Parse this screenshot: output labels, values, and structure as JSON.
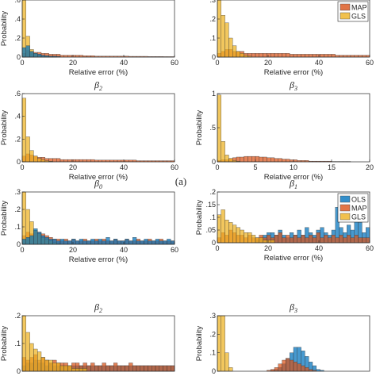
{
  "figure": {
    "label_a": "(a)",
    "colors": {
      "OLS": "#0072BD",
      "MAP": "#D95319",
      "GLS": "#EDB120"
    }
  },
  "chart_data": [
    {
      "type": "bar",
      "id": "a1",
      "title": "",
      "xlabel": "Relative error (%)",
      "ylabel": "Probability",
      "xlim": [
        0,
        60
      ],
      "ylim": [
        0,
        0.6
      ],
      "xticks": [
        0,
        20,
        40,
        60
      ],
      "yticks": [
        0,
        0.2,
        0.4,
        0.6
      ],
      "binwidth": 1.5,
      "series": [
        {
          "name": "MAP",
          "values": [
            0.04,
            0.07,
            0.06,
            0.05,
            0.05,
            0.04,
            0.04,
            0.03,
            0.03,
            0.03,
            0.02,
            0.02,
            0.02,
            0.02,
            0.02,
            0.02,
            0.015,
            0.015,
            0.015,
            0.01,
            0.01,
            0.01,
            0.01,
            0.01,
            0.01,
            0.01,
            0.01,
            0.01,
            0.008,
            0.008,
            0.008,
            0.008,
            0.008,
            0.006,
            0.006,
            0.006,
            0.006,
            0.005,
            0.005,
            0.005
          ]
        },
        {
          "name": "GLS",
          "values": [
            0.62,
            0.22,
            0.08,
            0.04,
            0.02,
            0.01,
            0.01,
            0.005,
            0.005,
            0,
            0,
            0,
            0,
            0,
            0,
            0,
            0,
            0,
            0,
            0,
            0,
            0,
            0,
            0,
            0,
            0,
            0,
            0,
            0,
            0,
            0,
            0,
            0,
            0,
            0,
            0,
            0,
            0,
            0,
            0
          ]
        },
        {
          "name": "OLS",
          "values": [
            0.1,
            0.12,
            0.06,
            0.04,
            0.03,
            0.02,
            0.015,
            0.01,
            0.01,
            0.008,
            0,
            0,
            0,
            0,
            0,
            0,
            0,
            0,
            0,
            0,
            0,
            0,
            0,
            0,
            0,
            0,
            0,
            0,
            0,
            0,
            0,
            0,
            0,
            0,
            0,
            0,
            0,
            0,
            0,
            0
          ]
        }
      ],
      "legend": null
    },
    {
      "type": "bar",
      "id": "a2",
      "title": "",
      "xlabel": "Relative error (%)",
      "ylabel": "",
      "xlim": [
        0,
        60
      ],
      "ylim": [
        0,
        0.3
      ],
      "xticks": [
        0,
        20,
        40,
        60
      ],
      "yticks": [
        0,
        0.1,
        0.2,
        0.3
      ],
      "binwidth": 1.5,
      "series": [
        {
          "name": "MAP",
          "values": [
            0.02,
            0.03,
            0.04,
            0.04,
            0.03,
            0.03,
            0.03,
            0.02,
            0.02,
            0.02,
            0.02,
            0.02,
            0.02,
            0.02,
            0.02,
            0.02,
            0.02,
            0.02,
            0.02,
            0.015,
            0.015,
            0.015,
            0.015,
            0.015,
            0.015,
            0.015,
            0.015,
            0.015,
            0.015,
            0.015,
            0.015,
            0.01,
            0.01,
            0.01,
            0.01,
            0.01,
            0.01,
            0.01,
            0.01,
            0.01
          ]
        },
        {
          "name": "GLS",
          "values": [
            0.32,
            0.22,
            0.18,
            0.1,
            0.06,
            0.03,
            0.02,
            0.01,
            0.005,
            0,
            0,
            0,
            0,
            0,
            0,
            0,
            0,
            0,
            0,
            0,
            0,
            0,
            0,
            0,
            0,
            0,
            0,
            0,
            0,
            0,
            0,
            0,
            0,
            0,
            0,
            0,
            0,
            0,
            0,
            0
          ]
        }
      ],
      "legend": {
        "position": "top-right",
        "entries": [
          "MAP",
          "GLS"
        ]
      }
    },
    {
      "type": "bar",
      "id": "a3",
      "title": "β",
      "subscript": "2",
      "xlabel": "Relative error (%)",
      "ylabel": "Probability",
      "xlim": [
        0,
        60
      ],
      "ylim": [
        0,
        0.6
      ],
      "xticks": [
        0,
        20,
        40,
        60
      ],
      "yticks": [
        0,
        0.2,
        0.4,
        0.6
      ],
      "binwidth": 1.5,
      "series": [
        {
          "name": "MAP",
          "values": [
            0.05,
            0.07,
            0.06,
            0.05,
            0.04,
            0.04,
            0.03,
            0.03,
            0.03,
            0.03,
            0.02,
            0.02,
            0.02,
            0.02,
            0.02,
            0.02,
            0.02,
            0.02,
            0.02,
            0.015,
            0.015,
            0.015,
            0.015,
            0.015,
            0.015,
            0.015,
            0.015,
            0.015,
            0.015,
            0.015,
            0.01,
            0.01,
            0.01,
            0.01,
            0.01,
            0.01,
            0.01,
            0.01,
            0.01,
            0.01
          ]
        },
        {
          "name": "GLS",
          "values": [
            0.56,
            0.22,
            0.1,
            0.05,
            0.03,
            0.02,
            0.01,
            0.005,
            0,
            0,
            0,
            0,
            0,
            0,
            0,
            0,
            0,
            0,
            0,
            0,
            0,
            0,
            0,
            0,
            0,
            0,
            0,
            0,
            0,
            0,
            0,
            0,
            0,
            0,
            0,
            0,
            0,
            0,
            0,
            0
          ]
        }
      ],
      "legend": null
    },
    {
      "type": "bar",
      "id": "a4",
      "title": "β",
      "subscript": "3",
      "xlabel": "Relative error (%)",
      "ylabel": "Probability",
      "xlim": [
        0,
        20
      ],
      "ylim": [
        0,
        1
      ],
      "xticks": [
        0,
        5,
        10,
        15,
        20
      ],
      "yticks": [
        0,
        0.5,
        1
      ],
      "binwidth": 0.5,
      "series": [
        {
          "name": "MAP",
          "values": [
            0.02,
            0.03,
            0.03,
            0.05,
            0.06,
            0.07,
            0.07,
            0.08,
            0.08,
            0.08,
            0.08,
            0.07,
            0.07,
            0.06,
            0.06,
            0.05,
            0.05,
            0.04,
            0.04,
            0.03,
            0.03,
            0.02,
            0.02,
            0.02,
            0.01,
            0.01,
            0.01,
            0.01,
            0.01,
            0.01,
            0.005,
            0.005,
            0.005,
            0.005,
            0.005,
            0,
            0,
            0,
            0,
            0
          ]
        },
        {
          "name": "GLS",
          "values": [
            0.98,
            0.3,
            0.1,
            0.05,
            0.02,
            0.01,
            0,
            0,
            0,
            0,
            0,
            0,
            0,
            0,
            0,
            0,
            0,
            0,
            0,
            0,
            0,
            0,
            0,
            0,
            0,
            0,
            0,
            0,
            0,
            0,
            0,
            0,
            0,
            0,
            0,
            0,
            0,
            0,
            0,
            0
          ]
        }
      ],
      "legend": null
    },
    {
      "type": "bar",
      "id": "b1",
      "title": "β",
      "subscript": "0",
      "xlabel": "Relative error (%)",
      "ylabel": "Probability",
      "xlim": [
        0,
        60
      ],
      "ylim": [
        0,
        0.3
      ],
      "xticks": [
        0,
        20,
        40,
        60
      ],
      "yticks": [
        0,
        0.1,
        0.2,
        0.3
      ],
      "binwidth": 1.5,
      "series": [
        {
          "name": "MAP",
          "values": [
            0.05,
            0.07,
            0.06,
            0.08,
            0.07,
            0.06,
            0.05,
            0.04,
            0.03,
            0.03,
            0.02,
            0.03,
            0.02,
            0.03,
            0.02,
            0.02,
            0.03,
            0.02,
            0.02,
            0.03,
            0.02,
            0.03,
            0.02,
            0.02,
            0.03,
            0.02,
            0.02,
            0.03,
            0.02,
            0.02,
            0.03,
            0.02,
            0.02,
            0.03,
            0.02,
            0.02,
            0.03,
            0.02,
            0.02,
            0.02
          ]
        },
        {
          "name": "GLS",
          "values": [
            0.3,
            0.2,
            0.13,
            0.08,
            0.06,
            0.04,
            0.03,
            0.02,
            0.01,
            0.005,
            0,
            0,
            0,
            0,
            0,
            0,
            0,
            0,
            0,
            0,
            0,
            0,
            0,
            0,
            0,
            0,
            0,
            0,
            0,
            0,
            0,
            0,
            0,
            0,
            0,
            0,
            0,
            0,
            0,
            0
          ]
        },
        {
          "name": "OLS",
          "values": [
            0.03,
            0.04,
            0.05,
            0.09,
            0.07,
            0.05,
            0.04,
            0.03,
            0.03,
            0.02,
            0.03,
            0.02,
            0.02,
            0.03,
            0.02,
            0.03,
            0.02,
            0.02,
            0.03,
            0.02,
            0.03,
            0.02,
            0.04,
            0.02,
            0.03,
            0.02,
            0.02,
            0.03,
            0.02,
            0.04,
            0.02,
            0.02,
            0.03,
            0.02,
            0.02,
            0.03,
            0.02,
            0.02,
            0.03,
            0.02
          ]
        }
      ],
      "legend": null
    },
    {
      "type": "bar",
      "id": "b2",
      "title": "β",
      "subscript": "1",
      "xlabel": "Relative error (%)",
      "ylabel": "Probability",
      "xlim": [
        0,
        60
      ],
      "ylim": [
        0,
        0.2
      ],
      "xticks": [
        0,
        20,
        40,
        60
      ],
      "yticks": [
        0,
        0.05,
        0.1,
        0.15,
        0.2
      ],
      "binwidth": 1.5,
      "series": [
        {
          "name": "OLS",
          "values": [
            0,
            0,
            0,
            0,
            0,
            0,
            0,
            0,
            0,
            0,
            0.01,
            0.02,
            0.03,
            0.04,
            0.04,
            0.03,
            0.05,
            0.03,
            0.02,
            0.04,
            0.03,
            0.05,
            0.03,
            0.06,
            0.04,
            0.03,
            0.05,
            0.06,
            0.04,
            0.03,
            0.05,
            0.14,
            0.06,
            0.04,
            0.07,
            0.05,
            0.14,
            0.08,
            0.04,
            0.06
          ]
        },
        {
          "name": "MAP",
          "values": [
            0.02,
            0.04,
            0.03,
            0.05,
            0.04,
            0.03,
            0.03,
            0.02,
            0.03,
            0.02,
            0.02,
            0.03,
            0.02,
            0.03,
            0.02,
            0.03,
            0.04,
            0.02,
            0.03,
            0.02,
            0.03,
            0.02,
            0.03,
            0.02,
            0.03,
            0.02,
            0.04,
            0.02,
            0.03,
            0.02,
            0.03,
            0.02,
            0.03,
            0.02,
            0.03,
            0.02,
            0.03,
            0.02,
            0.02,
            0.02
          ]
        },
        {
          "name": "GLS",
          "values": [
            0.11,
            0.13,
            0.09,
            0.08,
            0.07,
            0.06,
            0.05,
            0.04,
            0.04,
            0.03,
            0.02,
            0.02,
            0.01,
            0.01,
            0.01,
            0,
            0,
            0,
            0,
            0,
            0,
            0,
            0,
            0,
            0,
            0,
            0,
            0,
            0,
            0,
            0,
            0,
            0,
            0,
            0,
            0,
            0,
            0,
            0,
            0
          ]
        }
      ],
      "legend": {
        "position": "top-right",
        "entries": [
          "OLS",
          "MAP",
          "GLS"
        ]
      }
    },
    {
      "type": "bar",
      "id": "b3",
      "title": "β",
      "subscript": "2",
      "xlabel": "",
      "ylabel": "Probability",
      "xlim": [
        0,
        60
      ],
      "ylim": [
        0,
        0.2
      ],
      "xticks": [],
      "yticks": [
        0,
        0.1,
        0.2
      ],
      "binwidth": 1.5,
      "series": [
        {
          "name": "OLS",
          "values": [
            0.02,
            0.03,
            0.03,
            0.04,
            0.03,
            0.03,
            0.02,
            0.03,
            0.02,
            0.02,
            0.02,
            0.02,
            0.02,
            0.02,
            0.02,
            0.02,
            0.02,
            0.02,
            0.02,
            0.02,
            0.02,
            0.02,
            0.02,
            0.02,
            0.02,
            0.02,
            0.02,
            0.02,
            0.02,
            0.02,
            0.02,
            0.02,
            0.02,
            0.02,
            0.02,
            0.02,
            0.02,
            0.02,
            0.02,
            0.02
          ]
        },
        {
          "name": "MAP",
          "values": [
            0.05,
            0.04,
            0.05,
            0.06,
            0.04,
            0.05,
            0.04,
            0.03,
            0.04,
            0.03,
            0.03,
            0.03,
            0.02,
            0.03,
            0.03,
            0.02,
            0.03,
            0.02,
            0.03,
            0.02,
            0.02,
            0.03,
            0.02,
            0.02,
            0.03,
            0.02,
            0.02,
            0.02,
            0.03,
            0.02,
            0.02,
            0.02,
            0.02,
            0.02,
            0.02,
            0.02,
            0.02,
            0.02,
            0.02,
            0.02
          ]
        },
        {
          "name": "GLS",
          "values": [
            0.2,
            0.14,
            0.1,
            0.08,
            0.07,
            0.05,
            0.04,
            0.04,
            0.03,
            0.03,
            0.02,
            0.02,
            0.02,
            0.01,
            0.01,
            0.01,
            0.01,
            0,
            0,
            0,
            0,
            0,
            0,
            0,
            0,
            0,
            0,
            0,
            0,
            0,
            0,
            0,
            0,
            0,
            0,
            0,
            0,
            0,
            0,
            0
          ]
        }
      ],
      "legend": null
    },
    {
      "type": "bar",
      "id": "b4",
      "title": "β",
      "subscript": "3",
      "xlabel": "",
      "ylabel": "Probability",
      "xlim": [
        0,
        60
      ],
      "ylim": [
        0,
        0.3
      ],
      "xticks": [],
      "yticks": [
        0,
        0.1,
        0.2,
        0.3
      ],
      "binwidth": 1.5,
      "series": [
        {
          "name": "OLS",
          "values": [
            0,
            0,
            0,
            0,
            0,
            0,
            0,
            0,
            0,
            0,
            0,
            0,
            0,
            0,
            0.005,
            0.01,
            0.02,
            0.04,
            0.07,
            0.1,
            0.13,
            0.13,
            0.11,
            0.08,
            0.05,
            0.03,
            0.01,
            0.005,
            0,
            0,
            0,
            0,
            0,
            0,
            0,
            0,
            0,
            0,
            0,
            0
          ]
        },
        {
          "name": "MAP",
          "values": [
            0,
            0,
            0,
            0,
            0,
            0,
            0,
            0,
            0,
            0,
            0,
            0,
            0,
            0.005,
            0.01,
            0.02,
            0.04,
            0.06,
            0.07,
            0.06,
            0.05,
            0.04,
            0.03,
            0.02,
            0.01,
            0.005,
            0,
            0,
            0,
            0,
            0,
            0,
            0,
            0,
            0,
            0,
            0,
            0,
            0,
            0
          ]
        },
        {
          "name": "GLS",
          "values": [
            0.32,
            0.34,
            0.1,
            0.02,
            0,
            0,
            0,
            0,
            0,
            0,
            0,
            0,
            0,
            0,
            0,
            0,
            0,
            0,
            0,
            0,
            0,
            0,
            0,
            0,
            0,
            0,
            0,
            0,
            0,
            0,
            0,
            0,
            0,
            0,
            0,
            0,
            0,
            0,
            0,
            0
          ]
        }
      ],
      "legend": null
    }
  ]
}
